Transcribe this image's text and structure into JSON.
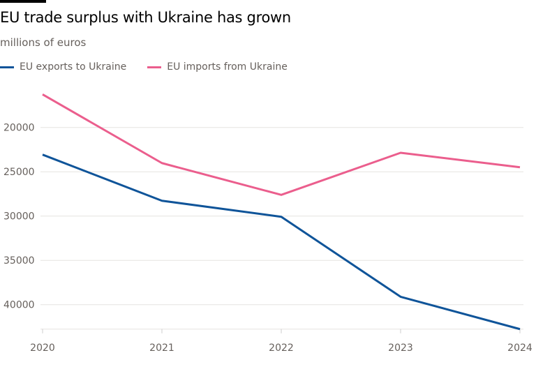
{
  "chart_data": {
    "type": "line",
    "title": "EU trade surplus with Ukraine has grown",
    "subtitle": "millions of euros",
    "x": [
      "2020",
      "2021",
      "2022",
      "2023",
      "2024"
    ],
    "series": [
      {
        "name": "EU exports to Ukraine",
        "color": "#0f5499",
        "values": [
          23070,
          28270,
          30080,
          39110,
          42760
        ]
      },
      {
        "name": "EU imports from Ukraine",
        "color": "#eb5e8d",
        "values": [
          16270,
          24020,
          27610,
          22860,
          24490
        ]
      }
    ],
    "yticks": [
      20000,
      25000,
      30000,
      35000,
      40000
    ],
    "ylim": [
      16270,
      42760
    ],
    "y_inverted": true,
    "grid": true,
    "legend_position": "top-left"
  }
}
